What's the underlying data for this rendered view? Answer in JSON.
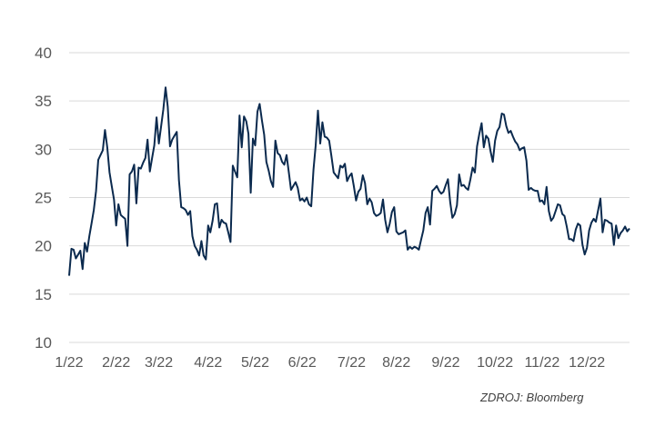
{
  "source": "ZDROJ: Bloomberg",
  "chart_data": {
    "type": "line",
    "title": "",
    "xlabel": "",
    "ylabel": "",
    "ylim": [
      10,
      40
    ],
    "yticks": [
      10,
      15,
      20,
      25,
      30,
      35,
      40
    ],
    "ytick_labels": [
      "10",
      "15",
      "20",
      "25",
      "30",
      "35",
      "40"
    ],
    "xlim": [
      0,
      250
    ],
    "xtick_positions": [
      0,
      21,
      40,
      62,
      83,
      104,
      126,
      146,
      168,
      190,
      211,
      231
    ],
    "xtick_labels": [
      "1/22",
      "2/22",
      "3/22",
      "4/22",
      "5/22",
      "6/22",
      "7/22",
      "8/22",
      "9/22",
      "10/22",
      "11/22",
      "12/22"
    ],
    "grid": "horizontal",
    "line_color": "#0b2a4e",
    "series": [
      {
        "x": [
          0,
          1,
          2,
          3,
          4,
          5,
          6,
          7,
          8,
          9,
          10,
          11,
          12,
          13,
          14,
          15,
          16,
          17,
          18,
          19,
          20,
          21,
          22,
          23,
          24,
          25,
          26,
          27,
          28,
          29,
          30,
          31,
          32,
          33,
          34,
          35,
          36,
          37,
          38,
          39,
          40,
          41,
          42,
          43,
          44,
          45,
          46,
          47,
          48,
          49,
          50,
          51,
          52,
          53,
          54,
          55,
          56,
          57,
          58,
          59,
          60,
          61,
          62,
          63,
          64,
          65,
          66,
          67,
          68,
          69,
          70,
          71,
          72,
          73,
          74,
          75,
          76,
          77,
          78,
          79,
          80,
          81,
          82,
          83,
          84,
          85,
          86,
          87,
          88,
          89,
          90,
          91,
          92,
          93,
          94,
          95,
          96,
          97,
          98,
          99,
          100,
          101,
          102,
          103,
          104,
          105,
          106,
          107,
          108,
          109,
          110,
          111,
          112,
          113,
          114,
          115,
          116,
          117,
          118,
          119,
          120,
          121,
          122,
          123,
          124,
          125,
          126,
          127,
          128,
          129,
          130,
          131,
          132,
          133,
          134,
          135,
          136,
          137,
          138,
          139,
          140,
          141,
          142,
          143,
          144,
          145,
          146,
          147,
          148,
          149,
          150,
          151,
          152,
          153,
          154,
          155,
          156,
          157,
          158,
          159,
          160,
          161,
          162,
          163,
          164,
          165,
          166,
          167,
          168,
          169,
          170,
          171,
          172,
          173,
          174,
          175,
          176,
          177,
          178,
          179,
          180,
          181,
          182,
          183,
          184,
          185,
          186,
          187,
          188,
          189,
          190,
          191,
          192,
          193,
          194,
          195,
          196,
          197,
          198,
          199,
          200,
          201,
          202,
          203,
          204,
          205,
          206,
          207,
          208,
          209,
          210,
          211,
          212,
          213,
          214,
          215,
          216,
          217,
          218,
          219,
          220,
          221,
          222,
          223,
          224,
          225,
          226,
          227,
          228,
          229,
          230,
          231,
          232,
          233,
          234,
          235,
          236,
          237,
          238,
          239,
          240,
          241,
          242,
          243,
          244,
          245,
          246,
          247,
          248,
          249,
          250
        ],
        "values": [
          16.9,
          19.7,
          19.6,
          18.7,
          19.1,
          19.5,
          17.6,
          20.3,
          19.4,
          21.0,
          22.3,
          23.7,
          25.7,
          28.9,
          29.4,
          29.9,
          32.0,
          30.2,
          27.6,
          26.2,
          24.8,
          22.1,
          24.3,
          23.2,
          23.0,
          22.8,
          20.0,
          27.4,
          27.7,
          28.4,
          24.4,
          28.1,
          28.0,
          28.6,
          29.1,
          31.0,
          27.7,
          29.1,
          30.4,
          33.3,
          30.6,
          32.3,
          34.1,
          36.4,
          34.4,
          30.3,
          31.0,
          31.4,
          31.8,
          26.8,
          24.0,
          23.9,
          23.7,
          23.2,
          23.6,
          21.0,
          20.0,
          19.6,
          19.0,
          20.5,
          19.0,
          18.6,
          22.1,
          21.4,
          22.6,
          24.3,
          24.4,
          21.9,
          22.7,
          22.4,
          22.3,
          21.4,
          20.4,
          28.3,
          27.7,
          27.1,
          33.5,
          30.2,
          33.4,
          32.9,
          31.6,
          25.5,
          31.1,
          30.4,
          33.9,
          34.7,
          33.0,
          31.5,
          28.7,
          27.8,
          26.7,
          26.1,
          30.9,
          29.6,
          29.4,
          28.7,
          28.4,
          29.4,
          27.6,
          25.8,
          26.2,
          26.6,
          26.0,
          24.7,
          24.9,
          24.6,
          25.0,
          24.3,
          24.1,
          27.9,
          30.4,
          34.0,
          30.6,
          32.8,
          31.3,
          31.2,
          30.9,
          29.3,
          27.6,
          27.3,
          27.0,
          28.3,
          28.1,
          28.5,
          26.7,
          27.2,
          27.5,
          26.2,
          24.7,
          25.6,
          25.9,
          27.3,
          26.5,
          24.3,
          24.9,
          24.5,
          23.4,
          23.1,
          23.2,
          23.4,
          24.8,
          22.7,
          21.4,
          22.3,
          23.5,
          24.0,
          21.5,
          21.2,
          21.3,
          21.4,
          21.6,
          19.6,
          19.9,
          19.7,
          19.9,
          19.8,
          19.6,
          20.6,
          21.6,
          23.4,
          24.0,
          22.2,
          25.7,
          25.9,
          26.2,
          25.7,
          25.4,
          25.6,
          26.3,
          26.9,
          24.5,
          22.9,
          23.3,
          24.2,
          27.4,
          26.2,
          26.3,
          26.0,
          25.8,
          26.9,
          28.1,
          27.6,
          30.3,
          31.6,
          32.7,
          30.2,
          31.4,
          31.1,
          29.8,
          28.7,
          30.9,
          31.9,
          32.3,
          33.7,
          33.6,
          32.4,
          31.7,
          31.9,
          31.3,
          30.8,
          30.5,
          29.9,
          30.1,
          30.2,
          28.8,
          25.8,
          26.0,
          25.8,
          25.7,
          25.7,
          24.6,
          24.7,
          24.3,
          26.1,
          23.6,
          22.6,
          22.9,
          23.6,
          24.3,
          24.2,
          23.3,
          23.1,
          22.0,
          20.7,
          20.7,
          20.5,
          21.7,
          22.3,
          22.1,
          20.1,
          19.1,
          19.8,
          21.6,
          22.4,
          22.8,
          22.5,
          23.7,
          24.9,
          21.4,
          22.7,
          22.6,
          22.4,
          22.3,
          20.1,
          22.1,
          20.8,
          21.3,
          21.6,
          22.0,
          21.5,
          21.8
        ]
      }
    ]
  }
}
